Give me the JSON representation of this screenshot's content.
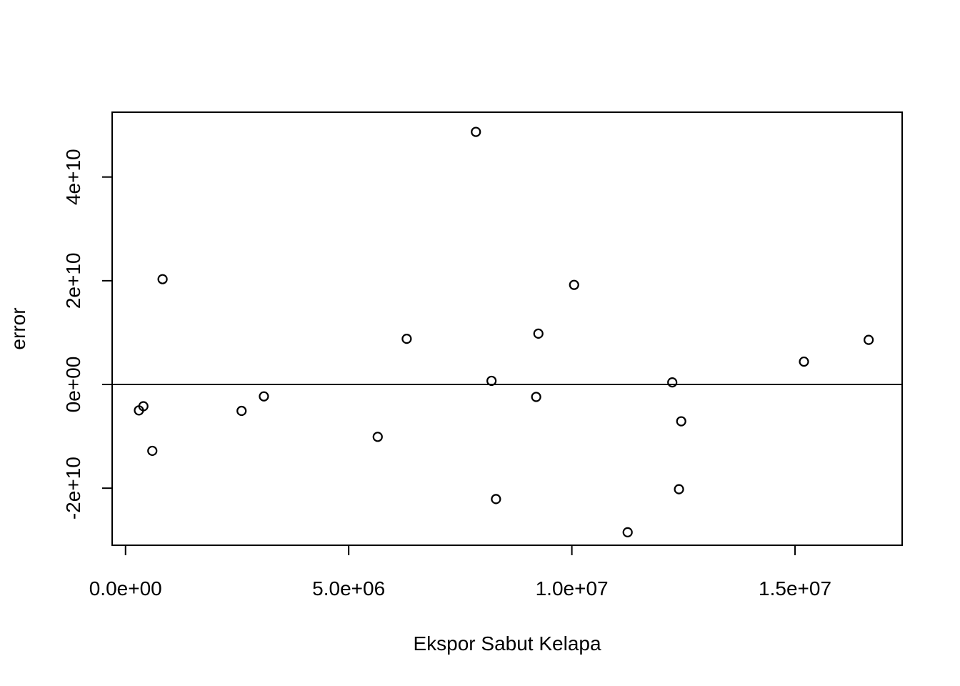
{
  "chart_data": {
    "type": "scatter",
    "title": "",
    "xlabel": "Ekspor Sabut Kelapa",
    "ylabel": "error",
    "xlim": [
      -300000,
      17400000
    ],
    "ylim": [
      -31000000000,
      52500000000
    ],
    "x_ticks": [
      {
        "value": 0,
        "label": "0.0e+00"
      },
      {
        "value": 5000000,
        "label": "5.0e+06"
      },
      {
        "value": 10000000,
        "label": "1.0e+07"
      },
      {
        "value": 15000000,
        "label": "1.5e+07"
      }
    ],
    "y_ticks": [
      {
        "value": -20000000000,
        "label": "-2e+10"
      },
      {
        "value": 0,
        "label": "0e+00"
      },
      {
        "value": 20000000000,
        "label": "2e+10"
      },
      {
        "value": 40000000000,
        "label": "4e+10"
      }
    ],
    "reference_line": {
      "y": 0
    },
    "grid": false,
    "points": [
      {
        "x": 300000,
        "y": -5000000000
      },
      {
        "x": 400000,
        "y": -4200000000
      },
      {
        "x": 600000,
        "y": -12800000000
      },
      {
        "x": 830000,
        "y": 20300000000
      },
      {
        "x": 2600000,
        "y": -5100000000
      },
      {
        "x": 3100000,
        "y": -2300000000
      },
      {
        "x": 5650000,
        "y": -10100000000
      },
      {
        "x": 6300000,
        "y": 8800000000
      },
      {
        "x": 7850000,
        "y": 48700000000
      },
      {
        "x": 8200000,
        "y": 700000000
      },
      {
        "x": 8300000,
        "y": -22100000000
      },
      {
        "x": 9200000,
        "y": -2400000000
      },
      {
        "x": 9250000,
        "y": 9800000000
      },
      {
        "x": 10050000,
        "y": 19200000000
      },
      {
        "x": 11250000,
        "y": -28500000000
      },
      {
        "x": 12250000,
        "y": 400000000
      },
      {
        "x": 12400000,
        "y": -20200000000
      },
      {
        "x": 12450000,
        "y": -7100000000
      },
      {
        "x": 15200000,
        "y": 4400000000
      },
      {
        "x": 16650000,
        "y": 8600000000
      }
    ]
  }
}
